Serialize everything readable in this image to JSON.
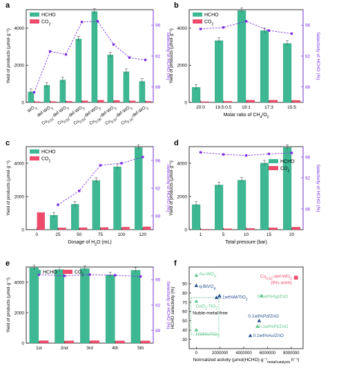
{
  "colors": {
    "hcho": "#3DB892",
    "co2": "#EE4B6B",
    "selectivity": "#7B2FE0",
    "panel_f_blue": "#1F4E8C",
    "panel_f_green": "#5CC48A",
    "panel_f_red": "#EE4B6B",
    "box": "#43B878"
  },
  "chart_data": [
    {
      "id": "a",
      "panel_label": "a",
      "type": "bar",
      "categories": [
        "WO3",
        "def-WO3",
        "Cu0.01-def-WO3",
        "Cu0.02-def-WO3",
        "Cu0.03-def-WO3",
        "Cu0.05-def-WO3",
        "Cu0.07-def-WO3",
        "Cu0.10-def-WO3"
      ],
      "category_labels": [
        {
          "base": "WO",
          "sub_pre": "",
          "post": "",
          "sub": "3"
        },
        {
          "base": "def-WO",
          "sub_pre": "",
          "post": "",
          "sub": "3"
        },
        {
          "base": "Cu",
          "sub_pre": "0.01",
          "post": "-def-WO",
          "sub": "3"
        },
        {
          "base": "Cu",
          "sub_pre": "0.02",
          "post": "-def-WO",
          "sub": "3"
        },
        {
          "base": "Cu",
          "sub_pre": "0.03",
          "post": "-def-WO",
          "sub": "3"
        },
        {
          "base": "Cu",
          "sub_pre": "0.05",
          "post": "-def-WO",
          "sub": "3"
        },
        {
          "base": "Cu",
          "sub_pre": "0.07",
          "post": "-def-WO",
          "sub": "3"
        },
        {
          "base": "Cu",
          "sub_pre": "0.10",
          "post": "-def-WO",
          "sub": "3"
        }
      ],
      "series": [
        {
          "name": "HCHO",
          "values": [
            570,
            920,
            1210,
            3420,
            4900,
            2560,
            1650,
            1130
          ]
        },
        {
          "name": "CO2",
          "values": [
            40,
            50,
            60,
            90,
            120,
            110,
            80,
            60
          ]
        }
      ],
      "selectivity": [
        87.3,
        92.6,
        92.2,
        96.4,
        96.5,
        93.5,
        91.8,
        91.5
      ],
      "xlabel": "",
      "ylabel": "Yield of products (µmol·g⁻¹)",
      "y2label": "Selectivity of HCHO (%)",
      "ylim": [
        0,
        5000
      ],
      "yticks": [
        0,
        2000,
        4000
      ],
      "y2lim": [
        86,
        98
      ],
      "y2ticks": [
        88,
        92,
        96
      ],
      "legend": "top-left",
      "rotate_xticks": true
    },
    {
      "id": "b",
      "panel_label": "b",
      "type": "bar",
      "categories": [
        "20:0",
        "19.5:0.5",
        "19:1",
        "17:3",
        "15:5"
      ],
      "series": [
        {
          "name": "HCHO",
          "values": [
            810,
            3330,
            4950,
            3870,
            3180
          ]
        },
        {
          "name": "CO2",
          "values": [
            40,
            60,
            120,
            120,
            110
          ]
        }
      ],
      "selectivity": [
        95.5,
        95.7,
        96.5,
        95.3,
        94.9
      ],
      "xlabel": "Molar ratio of CH4/O2",
      "ylabel": "Yield of products (µmol·g⁻¹)",
      "y2label": "Selectivity of HCHO (%)",
      "ylim": [
        0,
        5000
      ],
      "yticks": [
        0,
        2000,
        4000
      ],
      "y2lim": [
        86,
        98
      ],
      "y2ticks": [
        88,
        92,
        96
      ],
      "legend": "top-left"
    },
    {
      "id": "c",
      "panel_label": "c",
      "type": "bar",
      "categories": [
        "0",
        "25",
        "50",
        "75",
        "100",
        "120"
      ],
      "series": [
        {
          "name": "HCHO",
          "values": [
            0,
            870,
            1530,
            2960,
            3790,
            4950
          ]
        },
        {
          "name": "CO2",
          "values": [
            1030,
            110,
            120,
            130,
            150,
            170
          ]
        }
      ],
      "selectivity": [
        null,
        89.6,
        91.6,
        95.3,
        95.6,
        96.5
      ],
      "xlabel": "Dosage of H2O (mL)",
      "ylabel": "Yield of products (µmol·g⁻¹)",
      "y2label": "Selectivity of HCHO (%)",
      "ylim": [
        0,
        5000
      ],
      "yticks": [
        0,
        2000,
        4000
      ],
      "y2lim": [
        86,
        98
      ],
      "y2ticks": [
        88,
        92,
        96
      ],
      "legend": "top-left"
    },
    {
      "id": "d",
      "panel_label": "d",
      "type": "bar",
      "categories": [
        "1",
        "5",
        "10",
        "15",
        "20"
      ],
      "series": [
        {
          "name": "HCHO",
          "values": [
            1510,
            2690,
            2980,
            4010,
            4950
          ]
        },
        {
          "name": "CO2",
          "values": [
            30,
            60,
            80,
            110,
            150
          ]
        }
      ],
      "selectivity": [
        96.9,
        96.5,
        96.3,
        96.6,
        96.8
      ],
      "xlabel": "Total pressure (bar)",
      "ylabel": "Yield of products (µmol·g⁻¹)",
      "y2label": "Selectivity of HCHO (%)",
      "ylim": [
        0,
        5000
      ],
      "yticks": [
        0,
        2000,
        4000
      ],
      "y2lim": [
        82,
        98
      ],
      "y2ticks": [
        86,
        92,
        96
      ],
      "legend": "top-left"
    },
    {
      "id": "e",
      "panel_label": "e",
      "type": "bar",
      "categories": [
        "1st",
        "2nd",
        "3rd",
        "4th",
        "5th"
      ],
      "series": [
        {
          "name": "HCHO",
          "values": [
            4950,
            4830,
            4900,
            4480,
            4790
          ]
        },
        {
          "name": "CO2",
          "values": [
            160,
            150,
            160,
            150,
            150
          ]
        }
      ],
      "selectivity": [
        96.8,
        96.6,
        96.8,
        96.7,
        96.5
      ],
      "xlabel": "",
      "ylabel": "Yield of products (µmol·g⁻¹)",
      "y2label": "Selectivity of HCHO (%)",
      "ylim": [
        0,
        5000
      ],
      "yticks": [
        0,
        2000,
        4000
      ],
      "y2lim": [
        86,
        98
      ],
      "y2ticks": [
        88,
        92,
        96
      ],
      "legend": "top-left"
    },
    {
      "id": "f",
      "panel_label": "f",
      "type": "scatter",
      "xlabel": "Normalized activity (µmol(HCHO)·g⁻¹ metal/catalysts h⁻¹)",
      "ylabel": "HCHO selectivity (%)",
      "xlim": [
        -600000,
        9000000
      ],
      "ylim": [
        20,
        108
      ],
      "xticks": [
        0,
        2000000,
        4000000,
        6000000,
        8000000
      ],
      "yticks": [
        30,
        40,
        50,
        60,
        70,
        80,
        90
      ],
      "points": [
        {
          "label": "Au-WO3",
          "x": 0,
          "y": 99,
          "marker": "triangle",
          "color": "green"
        },
        {
          "label": "q-BiVO4",
          "x": 0,
          "y": 88,
          "marker": "triangle",
          "color": "blue"
        },
        {
          "label": "CoO2-TiO2",
          "x": 0,
          "y": 71,
          "marker": "triangle",
          "color": "green"
        },
        {
          "label": "HSiMo/TiO2",
          "x": 0,
          "y": 40,
          "marker": "triangle",
          "color": "green"
        },
        {
          "label": "0.1wt%M/TiO2",
          "x": 1700000,
          "y": 75,
          "marker": "triangle",
          "color": "blue"
        },
        {
          "label": "0.1wt%M/TiO2",
          "x": 1950000,
          "y": 77,
          "marker": "triangle",
          "color": "blue"
        },
        {
          "label": "0.1wt%Ag/ZnO",
          "x": 5500000,
          "y": 77,
          "marker": "triangle",
          "color": "green"
        },
        {
          "label": "0.1wt%Pd/ZnO",
          "x": 5300000,
          "y": 50,
          "marker": "triangle",
          "color": "blue"
        },
        {
          "label": "0.1wt%Pt/ZnO",
          "x": 5150000,
          "y": 44,
          "marker": "triangle",
          "color": "green"
        },
        {
          "label": "0.1wt%Au/ZnO",
          "x": 4550000,
          "y": 34,
          "marker": "triangle",
          "color": "blue"
        },
        {
          "label": "Cu0.02-def-WO3",
          "x": 8400000,
          "y": 96.5,
          "marker": "square",
          "color": "red"
        }
      ],
      "annotations": {
        "noble_metal_free": "Noble-metal-free",
        "this_work": "(this work)"
      }
    }
  ]
}
